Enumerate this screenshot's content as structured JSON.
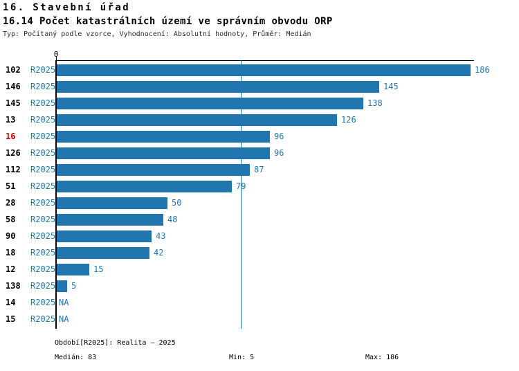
{
  "header": {
    "title_line1": "16. Stavební úřad",
    "title_line2": "16.14 Počet katastrálních území ve správním obvodu ORP",
    "subtitle": "Typ: Počítaný podle vzorce, Vyhodnocení: Absolutní hodnoty, Průměr: Medián"
  },
  "chart_data": {
    "type": "bar",
    "orientation": "horizontal",
    "title": "16.14 Počet katastrálních území ve správním obvodu ORP",
    "x_axis": {
      "origin_tick_label": "0",
      "min": 0,
      "max": 186,
      "gridlines": false
    },
    "period_label": "R2025",
    "na_label": "NA",
    "median_value": 83,
    "categories": [
      "102",
      "146",
      "145",
      "13",
      "16",
      "126",
      "112",
      "51",
      "28",
      "58",
      "90",
      "18",
      "12",
      "138",
      "14",
      "15"
    ],
    "values": [
      186,
      145,
      138,
      126,
      96,
      96,
      87,
      79,
      50,
      48,
      43,
      42,
      15,
      5,
      null,
      null
    ],
    "rows": [
      {
        "category": "102",
        "period": "R2025",
        "value": 186,
        "value_label": "186",
        "highlighted": false
      },
      {
        "category": "146",
        "period": "R2025",
        "value": 145,
        "value_label": "145",
        "highlighted": false
      },
      {
        "category": "145",
        "period": "R2025",
        "value": 138,
        "value_label": "138",
        "highlighted": false
      },
      {
        "category": "13",
        "period": "R2025",
        "value": 126,
        "value_label": "126",
        "highlighted": false
      },
      {
        "category": "16",
        "period": "R2025",
        "value": 96,
        "value_label": "96",
        "highlighted": true
      },
      {
        "category": "126",
        "period": "R2025",
        "value": 96,
        "value_label": "96",
        "highlighted": false
      },
      {
        "category": "112",
        "period": "R2025",
        "value": 87,
        "value_label": "87",
        "highlighted": false
      },
      {
        "category": "51",
        "period": "R2025",
        "value": 79,
        "value_label": "79",
        "highlighted": false
      },
      {
        "category": "28",
        "period": "R2025",
        "value": 50,
        "value_label": "50",
        "highlighted": false
      },
      {
        "category": "58",
        "period": "R2025",
        "value": 48,
        "value_label": "48",
        "highlighted": false
      },
      {
        "category": "90",
        "period": "R2025",
        "value": 43,
        "value_label": "43",
        "highlighted": false
      },
      {
        "category": "18",
        "period": "R2025",
        "value": 42,
        "value_label": "42",
        "highlighted": false
      },
      {
        "category": "12",
        "period": "R2025",
        "value": 15,
        "value_label": "15",
        "highlighted": false
      },
      {
        "category": "138",
        "period": "R2025",
        "value": 5,
        "value_label": "5",
        "highlighted": false
      },
      {
        "category": "14",
        "period": "R2025",
        "value": null,
        "value_label": "NA",
        "highlighted": false
      },
      {
        "category": "15",
        "period": "R2025",
        "value": null,
        "value_label": "NA",
        "highlighted": false
      }
    ],
    "colors": {
      "bar": "#2176b0",
      "median_line": "#2176b0",
      "blue_text": "#2176b0",
      "category_text": "#000000",
      "category_highlight": "#cc0000",
      "axis": "#000000"
    },
    "legend": null,
    "stats": {
      "median": 83,
      "min": 5,
      "max": 186
    }
  },
  "footer": {
    "period_line": "Období[R2025]: Realita – 2025",
    "median": "Medián: 83",
    "min": "Min: 5",
    "max": "Max: 186"
  }
}
